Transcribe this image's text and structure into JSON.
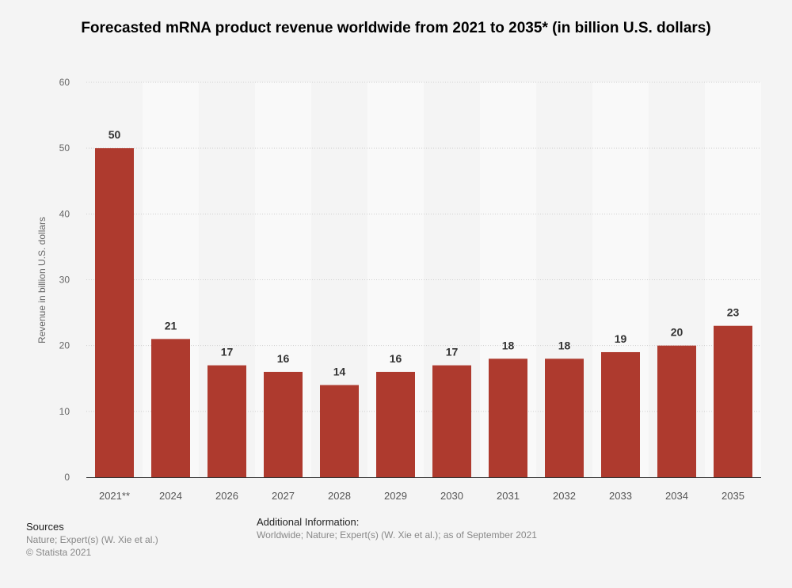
{
  "chart_data": {
    "type": "bar",
    "title": "Forecasted mRNA product revenue worldwide from 2021 to 2035* (in billion U.S. dollars)",
    "categories": [
      "2021**",
      "2024",
      "2026",
      "2027",
      "2028",
      "2029",
      "2030",
      "2031",
      "2032",
      "2033",
      "2034",
      "2035"
    ],
    "values": [
      50,
      21,
      17,
      16,
      14,
      16,
      17,
      18,
      18,
      19,
      20,
      23
    ],
    "xlabel": "",
    "ylabel": "Revenue in billion U.S. dollars",
    "ylim": [
      0,
      60
    ],
    "yticks": [
      0,
      10,
      20,
      30,
      40,
      50,
      60
    ],
    "grid": true,
    "data_labels": true,
    "bar_color": "#ae3a2e"
  },
  "footer": {
    "sources_heading": "Sources",
    "sources_text": "Nature; Expert(s) (W. Xie et al.)",
    "copyright": "© Statista 2021",
    "additional_heading": "Additional Information:",
    "additional_text": "Worldwide; Nature; Expert(s) (W. Xie et al.); as of September 2021"
  }
}
